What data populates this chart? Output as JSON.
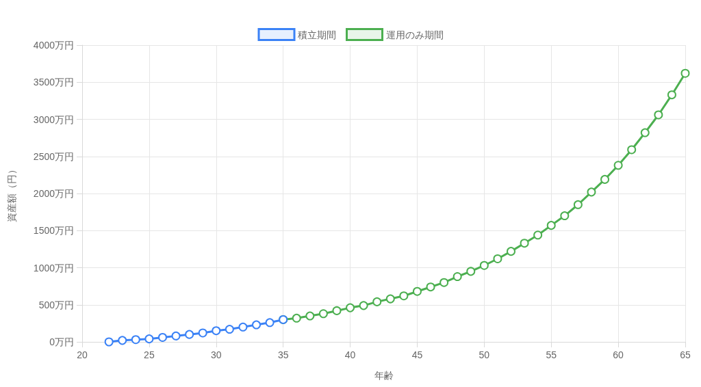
{
  "chart_data": {
    "type": "line",
    "xlabel": "年齢",
    "ylabel": "資産額（円）",
    "xlim": [
      20,
      65
    ],
    "xticks": [
      20,
      25,
      30,
      35,
      40,
      45,
      50,
      55,
      60,
      65
    ],
    "ylim": [
      0,
      4000
    ],
    "yticks": [
      {
        "value": 0,
        "label": "0万円"
      },
      {
        "value": 500,
        "label": "500万円"
      },
      {
        "value": 1000,
        "label": "1000万円"
      },
      {
        "value": 1500,
        "label": "1500万円"
      },
      {
        "value": 2000,
        "label": "2000万円"
      },
      {
        "value": 2500,
        "label": "2500万円"
      },
      {
        "value": 3000,
        "label": "3000万円"
      },
      {
        "value": 3500,
        "label": "3500万円"
      },
      {
        "value": 4000,
        "label": "4000万円"
      }
    ],
    "grid": true,
    "legend": "top",
    "marker": "circle",
    "line_style": "solid",
    "series": [
      {
        "name": "積立期間",
        "color": "#3b82f6",
        "x": [
          22,
          23,
          24,
          25,
          26,
          27,
          28,
          29,
          30,
          31,
          32,
          33,
          34,
          35
        ],
        "values": [
          0,
          20,
          30,
          40,
          60,
          80,
          100,
          120,
          150,
          170,
          200,
          230,
          260,
          300
        ]
      },
      {
        "name": "運用のみ期間",
        "color": "#4caf50",
        "x": [
          35,
          36,
          37,
          38,
          39,
          40,
          41,
          42,
          43,
          44,
          45,
          46,
          47,
          48,
          49,
          50,
          51,
          52,
          53,
          54,
          55,
          56,
          57,
          58,
          59,
          60,
          61,
          62,
          63,
          64,
          65
        ],
        "values": [
          300,
          320,
          350,
          380,
          420,
          460,
          490,
          540,
          580,
          620,
          680,
          740,
          800,
          880,
          950,
          1030,
          1120,
          1220,
          1330,
          1440,
          1570,
          1700,
          1850,
          2020,
          2190,
          2380,
          2590,
          2820,
          3060,
          3330,
          3620
        ]
      }
    ]
  }
}
